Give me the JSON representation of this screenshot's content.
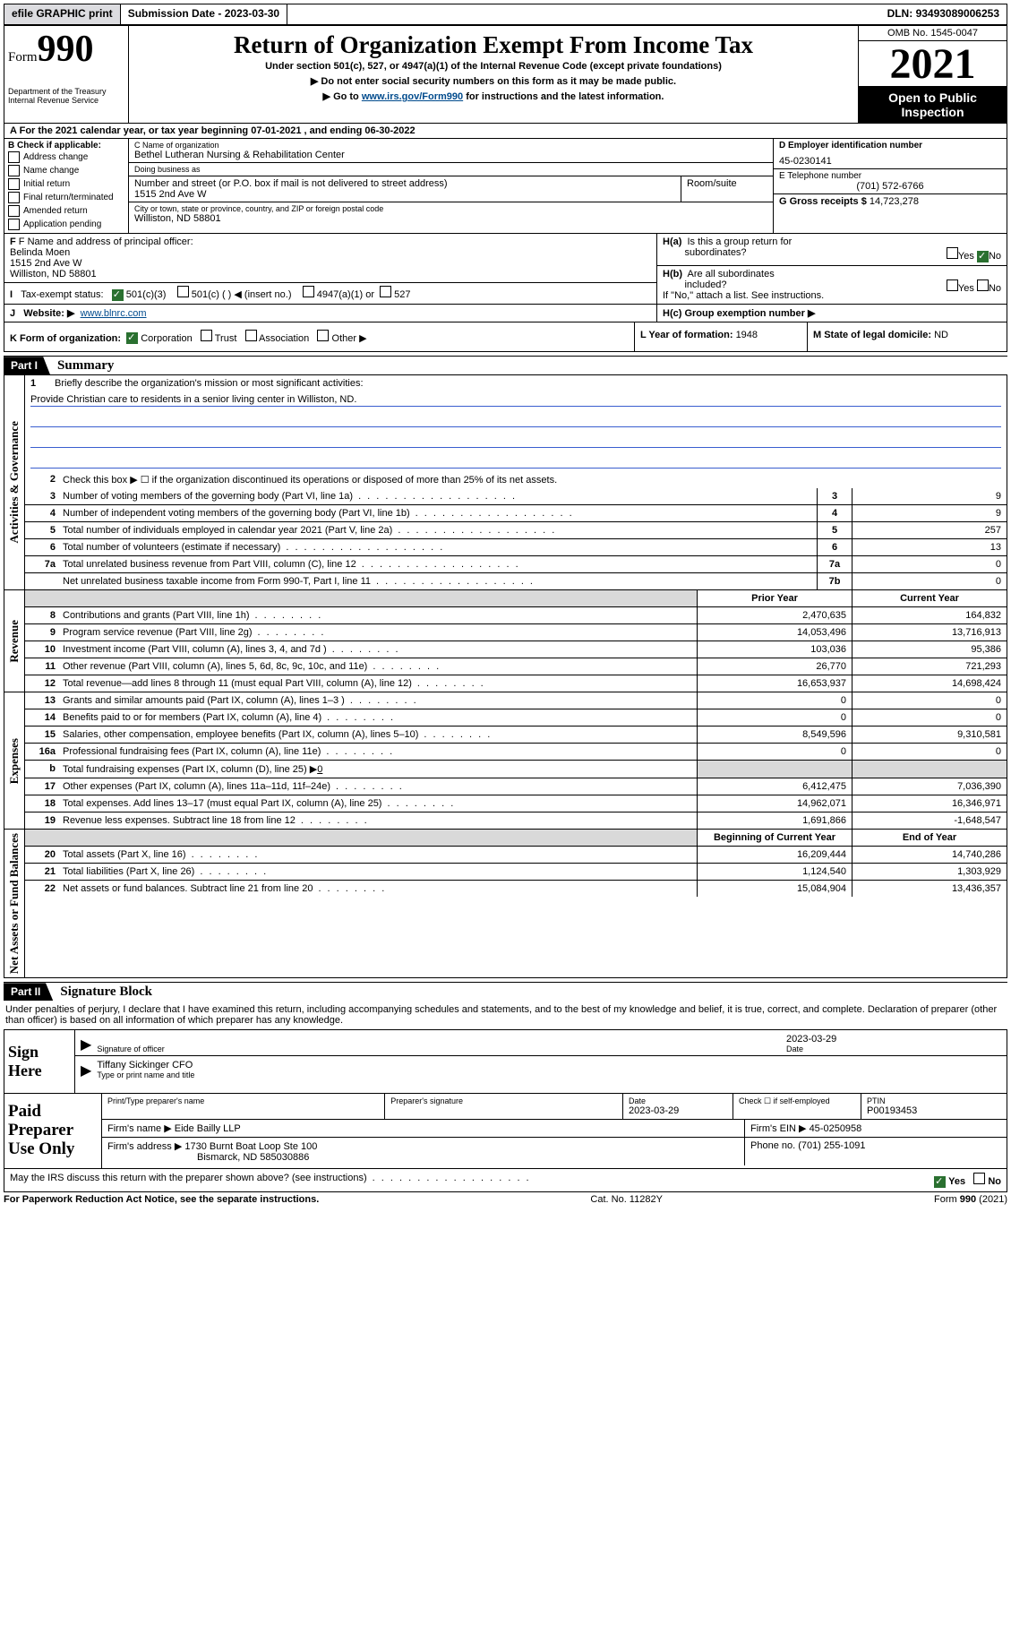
{
  "topbar": {
    "efile": "efile GRAPHIC print",
    "subdate_label": "Submission Date - ",
    "subdate": "2023-03-30",
    "dln_label": "DLN: ",
    "dln": "93493089006253"
  },
  "header": {
    "form_prefix": "Form",
    "form_num": "990",
    "dept": "Department of the Treasury",
    "irs": "Internal Revenue Service",
    "title": "Return of Organization Exempt From Income Tax",
    "sub1": "Under section 501(c), 527, or 4947(a)(1) of the Internal Revenue Code (except private foundations)",
    "sub2": "▶ Do not enter social security numbers on this form as it may be made public.",
    "sub3a": "▶ Go to ",
    "sub3link": "www.irs.gov/Form990",
    "sub3b": " for instructions and the latest information.",
    "omb": "OMB No. 1545-0047",
    "year": "2021",
    "open1": "Open to Public",
    "open2": "Inspection"
  },
  "period": {
    "text_a": "For the 2021 calendar year, or tax year beginning ",
    "begin": "07-01-2021",
    "text_b": " , and ending ",
    "end": "06-30-2022"
  },
  "boxB": {
    "label": "B Check if applicable:",
    "addr": "Address change",
    "name": "Name change",
    "initial": "Initial return",
    "final": "Final return/terminated",
    "amended": "Amended return",
    "app": "Application pending"
  },
  "boxC": {
    "name_lbl": "C Name of organization",
    "name": "Bethel Lutheran Nursing & Rehabilitation Center",
    "dba_lbl": "Doing business as",
    "dba": "",
    "street_lbl": "Number and street (or P.O. box if mail is not delivered to street address)",
    "street": "1515 2nd Ave W",
    "room_lbl": "Room/suite",
    "room": "",
    "city_lbl": "City or town, state or province, country, and ZIP or foreign postal code",
    "city": "Williston, ND  58801"
  },
  "boxD": {
    "ein_lbl": "D Employer identification number",
    "ein": "45-0230141",
    "tel_lbl": "E Telephone number",
    "tel": "(701) 572-6766",
    "gross_lbl": "G Gross receipts $ ",
    "gross": "14,723,278"
  },
  "boxF": {
    "lbl": "F Name and address of principal officer:",
    "name": "Belinda Moen",
    "addr1": "1515 2nd Ave W",
    "addr2": "Williston, ND  58801"
  },
  "boxH": {
    "a_lbl": "H(a)  Is this a group return for subordinates?",
    "b_lbl": "H(b)  Are all subordinates included?",
    "b_note": "If \"No,\" attach a list. See instructions.",
    "c_lbl": "H(c)  Group exemption number ▶",
    "yes": "Yes",
    "no": "No"
  },
  "boxI": {
    "lbl": "Tax-exempt status:",
    "o1": "501(c)(3)",
    "o2": "501(c) (  ) ◀ (insert no.)",
    "o3": "4947(a)(1) or",
    "o4": "527"
  },
  "boxJ": {
    "lbl": "Website: ▶",
    "val": "www.blnrc.com"
  },
  "boxK": {
    "lbl": "K Form of organization:",
    "corp": "Corporation",
    "trust": "Trust",
    "assoc": "Association",
    "other": "Other ▶"
  },
  "boxL": {
    "lbl": "L Year of formation: ",
    "val": "1948"
  },
  "boxM": {
    "lbl": "M State of legal domicile: ",
    "val": "ND"
  },
  "part1": {
    "badge": "Part I",
    "title": "Summary"
  },
  "summary_sections": [
    {
      "side_label": "Activities & Governance",
      "rows": [
        {
          "type": "mission_head",
          "num": "1",
          "desc": "Briefly describe the organization's mission or most significant activities:"
        },
        {
          "type": "mission_text",
          "text": "Provide Christian care to residents in a senior living center in Williston, ND."
        },
        {
          "type": "mission_line"
        },
        {
          "type": "mission_line"
        },
        {
          "type": "mission_line"
        },
        {
          "type": "check2",
          "num": "2",
          "desc": "Check this box ▶ ☐  if the organization discontinued its operations or disposed of more than 25% of its net assets."
        },
        {
          "type": "single",
          "num": "3",
          "desc": "Number of voting members of the governing body (Part VI, line 1a)",
          "box": "3",
          "val": "9"
        },
        {
          "type": "single",
          "num": "4",
          "desc": "Number of independent voting members of the governing body (Part VI, line 1b)",
          "box": "4",
          "val": "9"
        },
        {
          "type": "single",
          "num": "5",
          "desc": "Total number of individuals employed in calendar year 2021 (Part V, line 2a)",
          "box": "5",
          "val": "257"
        },
        {
          "type": "single",
          "num": "6",
          "desc": "Total number of volunteers (estimate if necessary)",
          "box": "6",
          "val": "13"
        },
        {
          "type": "single",
          "num": "7a",
          "desc": "Total unrelated business revenue from Part VIII, column (C), line 12",
          "box": "7a",
          "val": "0"
        },
        {
          "type": "single",
          "num": "",
          "desc": "Net unrelated business taxable income from Form 990-T, Part I, line 11",
          "box": "7b",
          "val": "0"
        }
      ]
    },
    {
      "side_label": "Revenue",
      "header": {
        "prior": "Prior Year",
        "current": "Current Year"
      },
      "rows": [
        {
          "num": "8",
          "desc": "Contributions and grants (Part VIII, line 1h)",
          "prior": "2,470,635",
          "current": "164,832"
        },
        {
          "num": "9",
          "desc": "Program service revenue (Part VIII, line 2g)",
          "prior": "14,053,496",
          "current": "13,716,913"
        },
        {
          "num": "10",
          "desc": "Investment income (Part VIII, column (A), lines 3, 4, and 7d )",
          "prior": "103,036",
          "current": "95,386"
        },
        {
          "num": "11",
          "desc": "Other revenue (Part VIII, column (A), lines 5, 6d, 8c, 9c, 10c, and 11e)",
          "prior": "26,770",
          "current": "721,293"
        },
        {
          "num": "12",
          "desc": "Total revenue—add lines 8 through 11 (must equal Part VIII, column (A), line 12)",
          "prior": "16,653,937",
          "current": "14,698,424"
        }
      ]
    },
    {
      "side_label": "Expenses",
      "rows": [
        {
          "num": "13",
          "desc": "Grants and similar amounts paid (Part IX, column (A), lines 1–3 )",
          "prior": "0",
          "current": "0"
        },
        {
          "num": "14",
          "desc": "Benefits paid to or for members (Part IX, column (A), line 4)",
          "prior": "0",
          "current": "0"
        },
        {
          "num": "15",
          "desc": "Salaries, other compensation, employee benefits (Part IX, column (A), lines 5–10)",
          "prior": "8,549,596",
          "current": "9,310,581"
        },
        {
          "num": "16a",
          "desc": "Professional fundraising fees (Part IX, column (A), line 11e)",
          "prior": "0",
          "current": "0"
        },
        {
          "type": "b_row",
          "num": "b",
          "desc": "Total fundraising expenses (Part IX, column (D), line 25) ▶",
          "inline": "0"
        },
        {
          "num": "17",
          "desc": "Other expenses (Part IX, column (A), lines 11a–11d, 11f–24e)",
          "prior": "6,412,475",
          "current": "7,036,390"
        },
        {
          "num": "18",
          "desc": "Total expenses. Add lines 13–17 (must equal Part IX, column (A), line 25)",
          "prior": "14,962,071",
          "current": "16,346,971"
        },
        {
          "num": "19",
          "desc": "Revenue less expenses. Subtract line 18 from line 12",
          "prior": "1,691,866",
          "current": "-1,648,547"
        }
      ]
    },
    {
      "side_label": "Net Assets or Fund Balances",
      "header": {
        "prior": "Beginning of Current Year",
        "current": "End of Year"
      },
      "rows": [
        {
          "num": "20",
          "desc": "Total assets (Part X, line 16)",
          "prior": "16,209,444",
          "current": "14,740,286"
        },
        {
          "num": "21",
          "desc": "Total liabilities (Part X, line 26)",
          "prior": "1,124,540",
          "current": "1,303,929"
        },
        {
          "num": "22",
          "desc": "Net assets or fund balances. Subtract line 21 from line 20",
          "prior": "15,084,904",
          "current": "13,436,357"
        }
      ]
    }
  ],
  "part2": {
    "badge": "Part II",
    "title": "Signature Block"
  },
  "penalty": "Under penalties of perjury, I declare that I have examined this return, including accompanying schedules and statements, and to the best of my knowledge and belief, it is true, correct, and complete. Declaration of preparer (other than officer) is based on all information of which preparer has any knowledge.",
  "sign": {
    "label": "Sign Here",
    "sig_lbl": "Signature of officer",
    "date_lbl": "Date",
    "date": "2023-03-29",
    "name": "Tiffany Sickinger CFO",
    "name_lbl": "Type or print name and title"
  },
  "paid": {
    "label": "Paid Preparer Use Only",
    "h_name": "Print/Type preparer's name",
    "h_sig": "Preparer's signature",
    "h_date": "Date",
    "date": "2023-03-29",
    "h_self": "Check ☐ if self-employed",
    "h_ptin": "PTIN",
    "ptin": "P00193453",
    "firm_lbl": "Firm's name    ▶ ",
    "firm": "Eide Bailly LLP",
    "ein_lbl": "Firm's EIN ▶ ",
    "ein": "45-0250958",
    "addr_lbl": "Firm's address ▶ ",
    "addr1": "1730 Burnt Boat Loop Ste 100",
    "addr2": "Bismarck, ND  585030886",
    "phone_lbl": "Phone no. ",
    "phone": "(701) 255-1091"
  },
  "mayirs": {
    "text": "May the IRS discuss this return with the preparer shown above? (see instructions)",
    "yes": "Yes",
    "no": "No"
  },
  "footer": {
    "l": "For Paperwork Reduction Act Notice, see the separate instructions.",
    "c": "Cat. No. 11282Y",
    "r": "Form 990 (2021)"
  }
}
